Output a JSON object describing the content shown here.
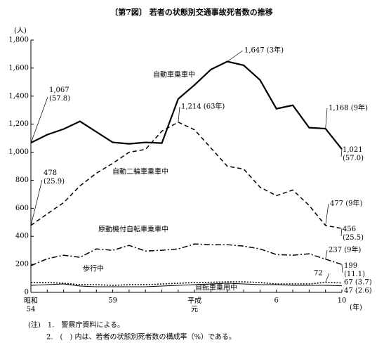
{
  "chart_data": {
    "type": "line",
    "title": "〔第7図〕 若者の状態別交通事故死者数の推移",
    "ylabel": "(人)",
    "xlabel": "(年)",
    "categories": [
      "昭和 54",
      null,
      null,
      null,
      null,
      "59",
      null,
      null,
      null,
      null,
      "平成 元",
      null,
      null,
      null,
      null,
      "6",
      null,
      null,
      null,
      "10"
    ],
    "ylim": [
      0,
      1800
    ],
    "yticks": [
      0,
      200,
      400,
      600,
      800,
      {
        "value": 1000,
        "label": "1,000"
      },
      {
        "value": 1200,
        "label": "1,200"
      },
      {
        "value": 1400,
        "label": "1,400"
      },
      {
        "value": 1600,
        "label": "1,600"
      },
      {
        "value": 1800,
        "label": "1,800"
      }
    ],
    "series": [
      {
        "name": "自動車乗車中",
        "color": "#000000",
        "style": "solid-thick",
        "values": [
          1067,
          1125,
          1165,
          1220,
          1145,
          1070,
          1060,
          1070,
          1065,
          1380,
          1480,
          1590,
          1647,
          1620,
          1515,
          1310,
          1335,
          1175,
          1168,
          1021
        ],
        "value_labels": [
          "1,067 (57.8)",
          null,
          null,
          null,
          null,
          null,
          null,
          null,
          null,
          null,
          null,
          null,
          "1,647 (3年)",
          null,
          null,
          null,
          null,
          null,
          "1,168 (9年)",
          "1,021 (57.0)"
        ]
      },
      {
        "name": "自動二輪車乗車中",
        "color": "#000000",
        "style": "dashed",
        "values": [
          478,
          560,
          640,
          760,
          850,
          920,
          1000,
          1020,
          1150,
          1214,
          1160,
          1030,
          900,
          880,
          750,
          690,
          730,
          620,
          477,
          456
        ],
        "value_labels": [
          "478 (25.9)",
          null,
          null,
          null,
          null,
          null,
          null,
          null,
          null,
          "1,214 (63年)",
          null,
          null,
          null,
          null,
          null,
          null,
          null,
          null,
          "477 (9年)",
          "456 (25.5)"
        ]
      },
      {
        "name": "原動機付自転車乗車中",
        "color": "#000000",
        "style": "dashdot",
        "values": [
          190,
          240,
          265,
          250,
          310,
          300,
          335,
          295,
          300,
          310,
          345,
          340,
          340,
          330,
          310,
          270,
          265,
          275,
          237,
          199
        ],
        "value_labels": [
          null,
          null,
          null,
          null,
          null,
          null,
          null,
          null,
          null,
          null,
          null,
          null,
          null,
          null,
          null,
          null,
          null,
          null,
          "237 (9年)",
          "199 (11.1)"
        ]
      },
      {
        "name": "歩行中",
        "color": "#000000",
        "style": "dotted",
        "values": [
          70,
          70,
          65,
          55,
          55,
          50,
          55,
          55,
          60,
          65,
          70,
          72,
          75,
          75,
          70,
          60,
          60,
          60,
          72,
          67
        ],
        "value_labels": [
          null,
          null,
          null,
          null,
          null,
          null,
          null,
          null,
          null,
          null,
          null,
          null,
          null,
          null,
          null,
          null,
          null,
          null,
          "72",
          "67 (3.7)"
        ]
      },
      {
        "name": "自転車乗用中",
        "color": "#000000",
        "style": "solid",
        "values": [
          50,
          55,
          60,
          45,
          40,
          40,
          40,
          40,
          45,
          50,
          55,
          60,
          65,
          60,
          55,
          55,
          50,
          50,
          50,
          47
        ],
        "value_labels": [
          null,
          null,
          null,
          null,
          null,
          null,
          null,
          null,
          null,
          null,
          null,
          null,
          null,
          null,
          null,
          null,
          null,
          null,
          null,
          "47 (2.6)"
        ]
      }
    ],
    "notes": [
      "(注)　1.　警察庁資料による。",
      "2.　(　) 内は、若者の状態別死者数の構成率（%）である。"
    ]
  }
}
